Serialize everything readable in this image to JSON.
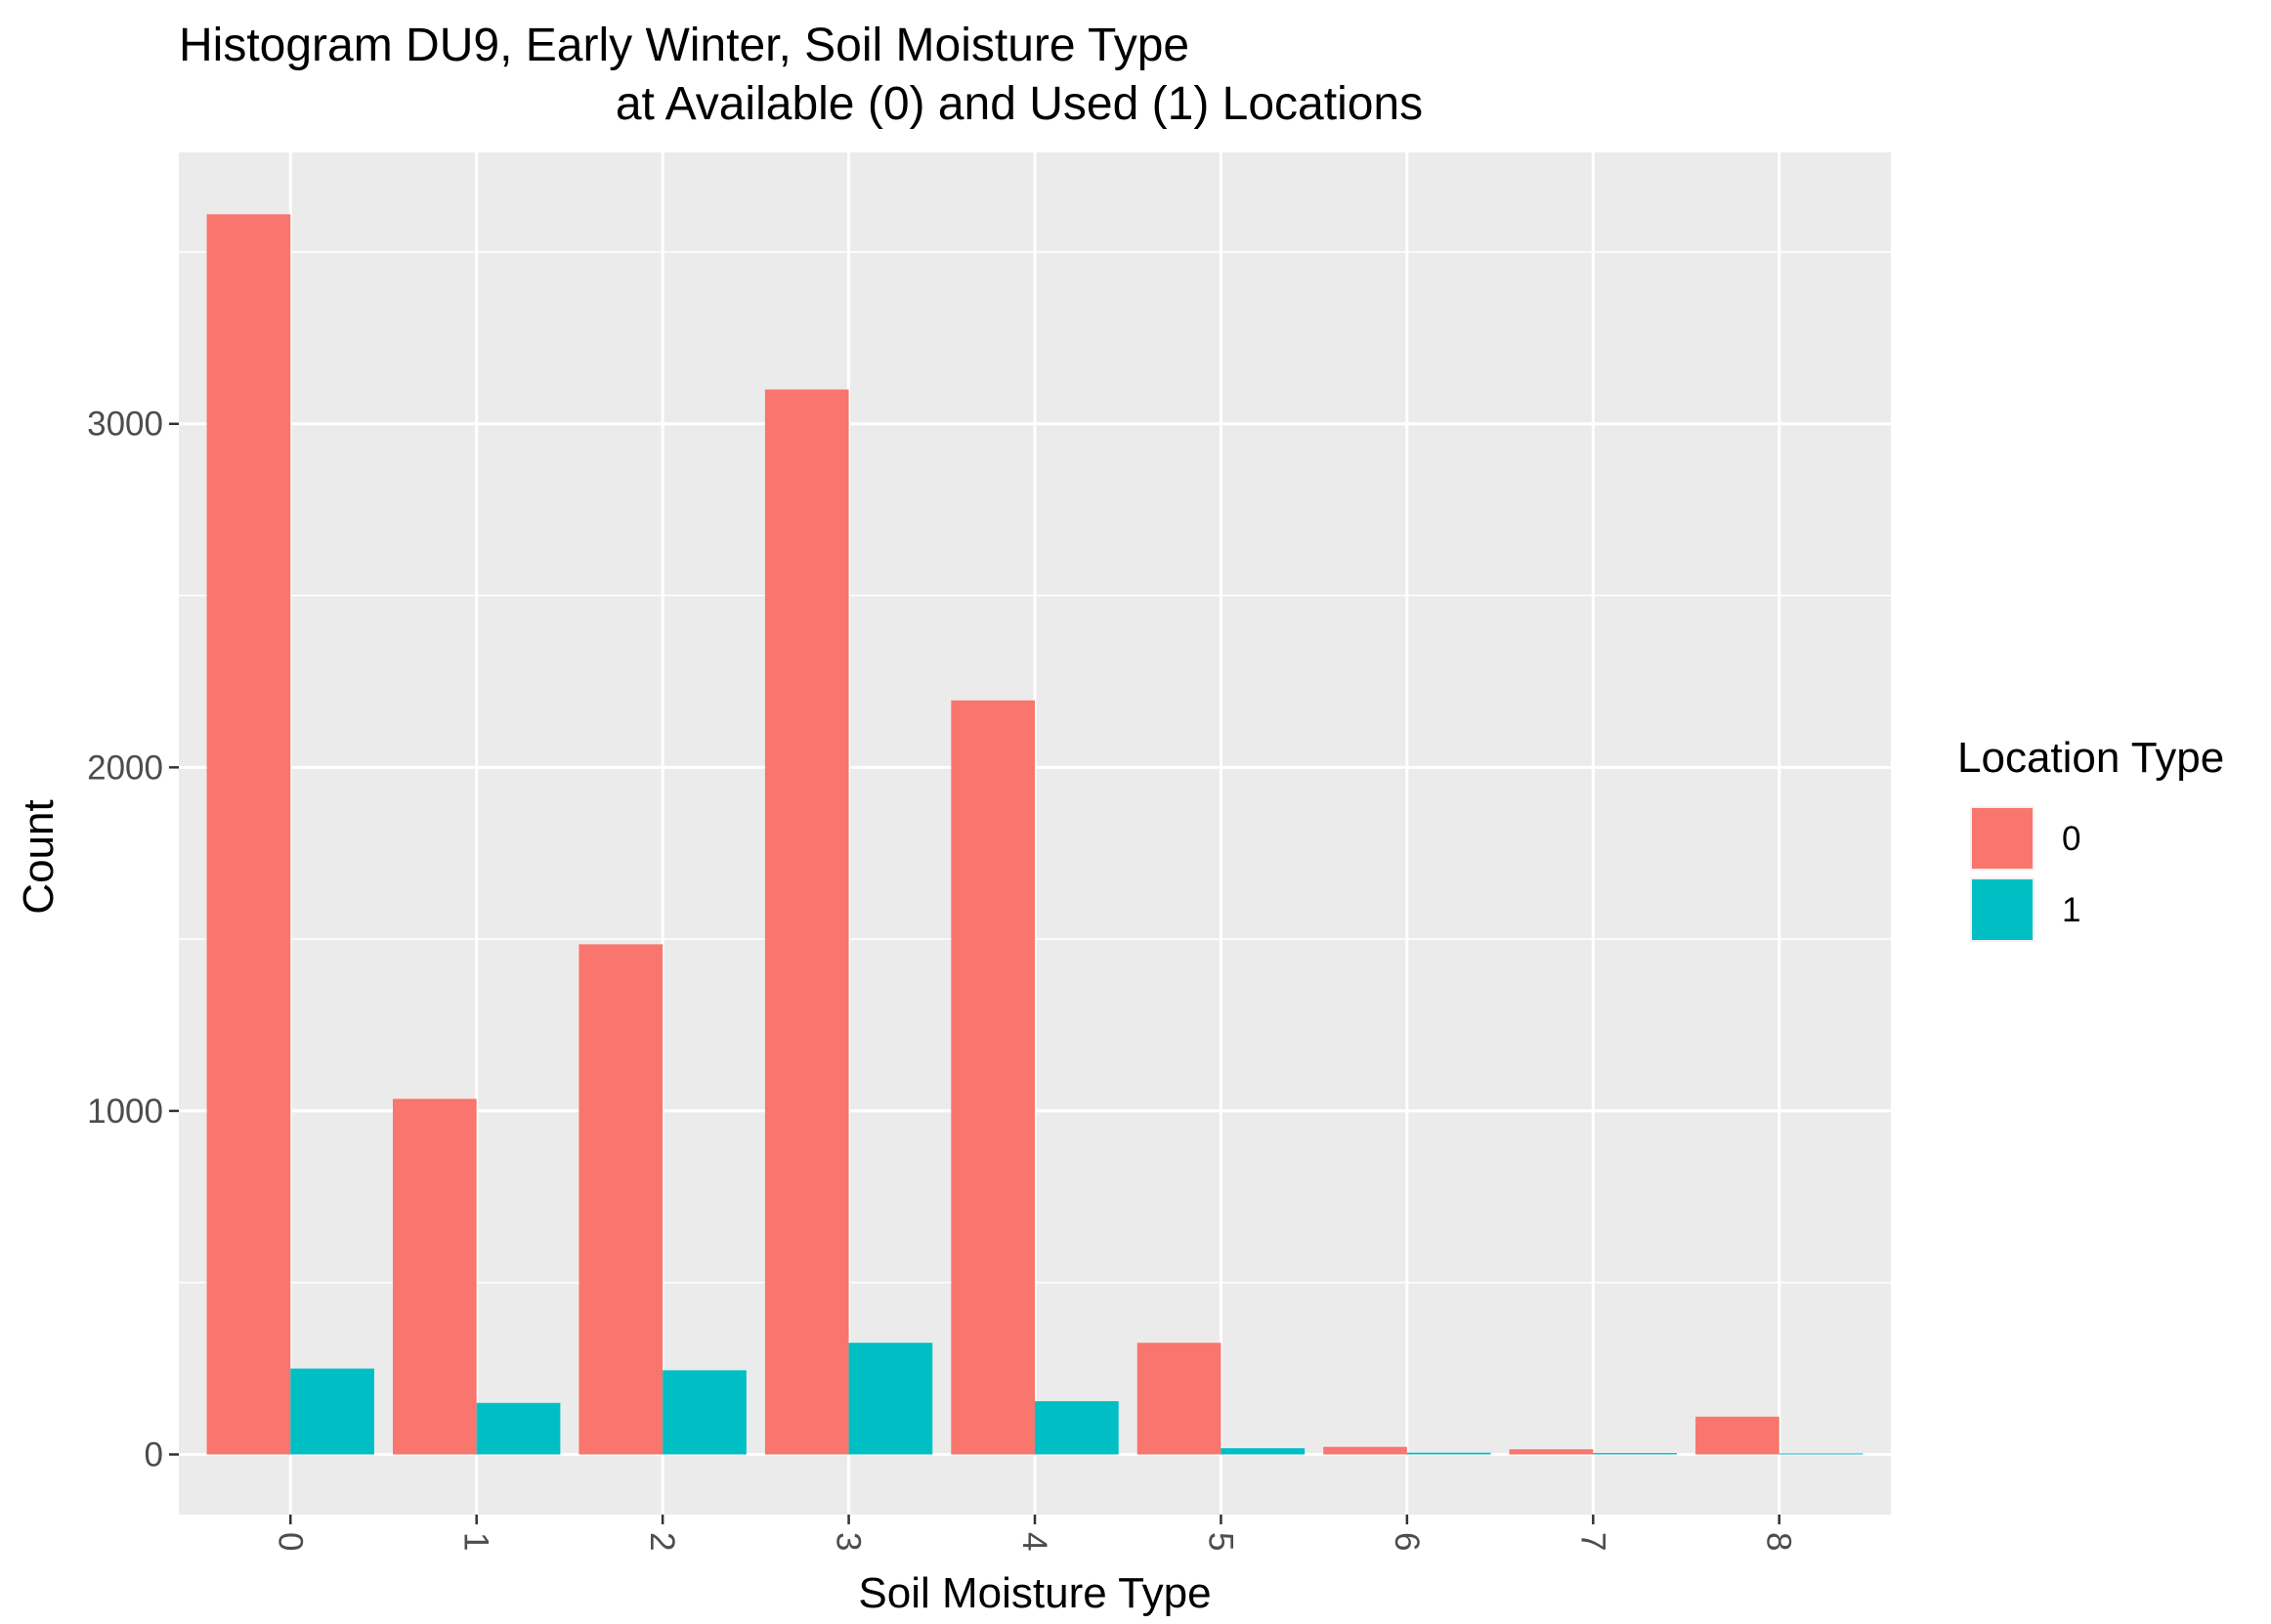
{
  "chart_data": {
    "type": "bar",
    "title_line1": "Histogram DU9, Early Winter, Soil Moisture Type",
    "title_line2": "at Available (0) and Used (1) Locations",
    "xlabel": "Soil Moisture Type",
    "ylabel": "Count",
    "categories": [
      "0",
      "1",
      "2",
      "3",
      "4",
      "5",
      "6",
      "7",
      "8"
    ],
    "series": [
      {
        "name": "0",
        "color": "#F8766D",
        "values": [
          3610,
          1035,
          1485,
          3100,
          2195,
          325,
          22,
          15,
          110
        ]
      },
      {
        "name": "1",
        "color": "#00BFC4",
        "values": [
          250,
          150,
          245,
          325,
          155,
          18,
          5,
          4,
          3
        ]
      }
    ],
    "ylim": [
      -175,
      3790
    ],
    "y_major_ticks": [
      0,
      1000,
      2000,
      3000
    ],
    "y_minor_ticks": [
      500,
      1500,
      2500,
      3500
    ],
    "grid": true,
    "panel_background": "#EBEBEB",
    "legend": {
      "title": "Location Type",
      "position": "right",
      "entries": [
        "0",
        "1"
      ]
    }
  }
}
